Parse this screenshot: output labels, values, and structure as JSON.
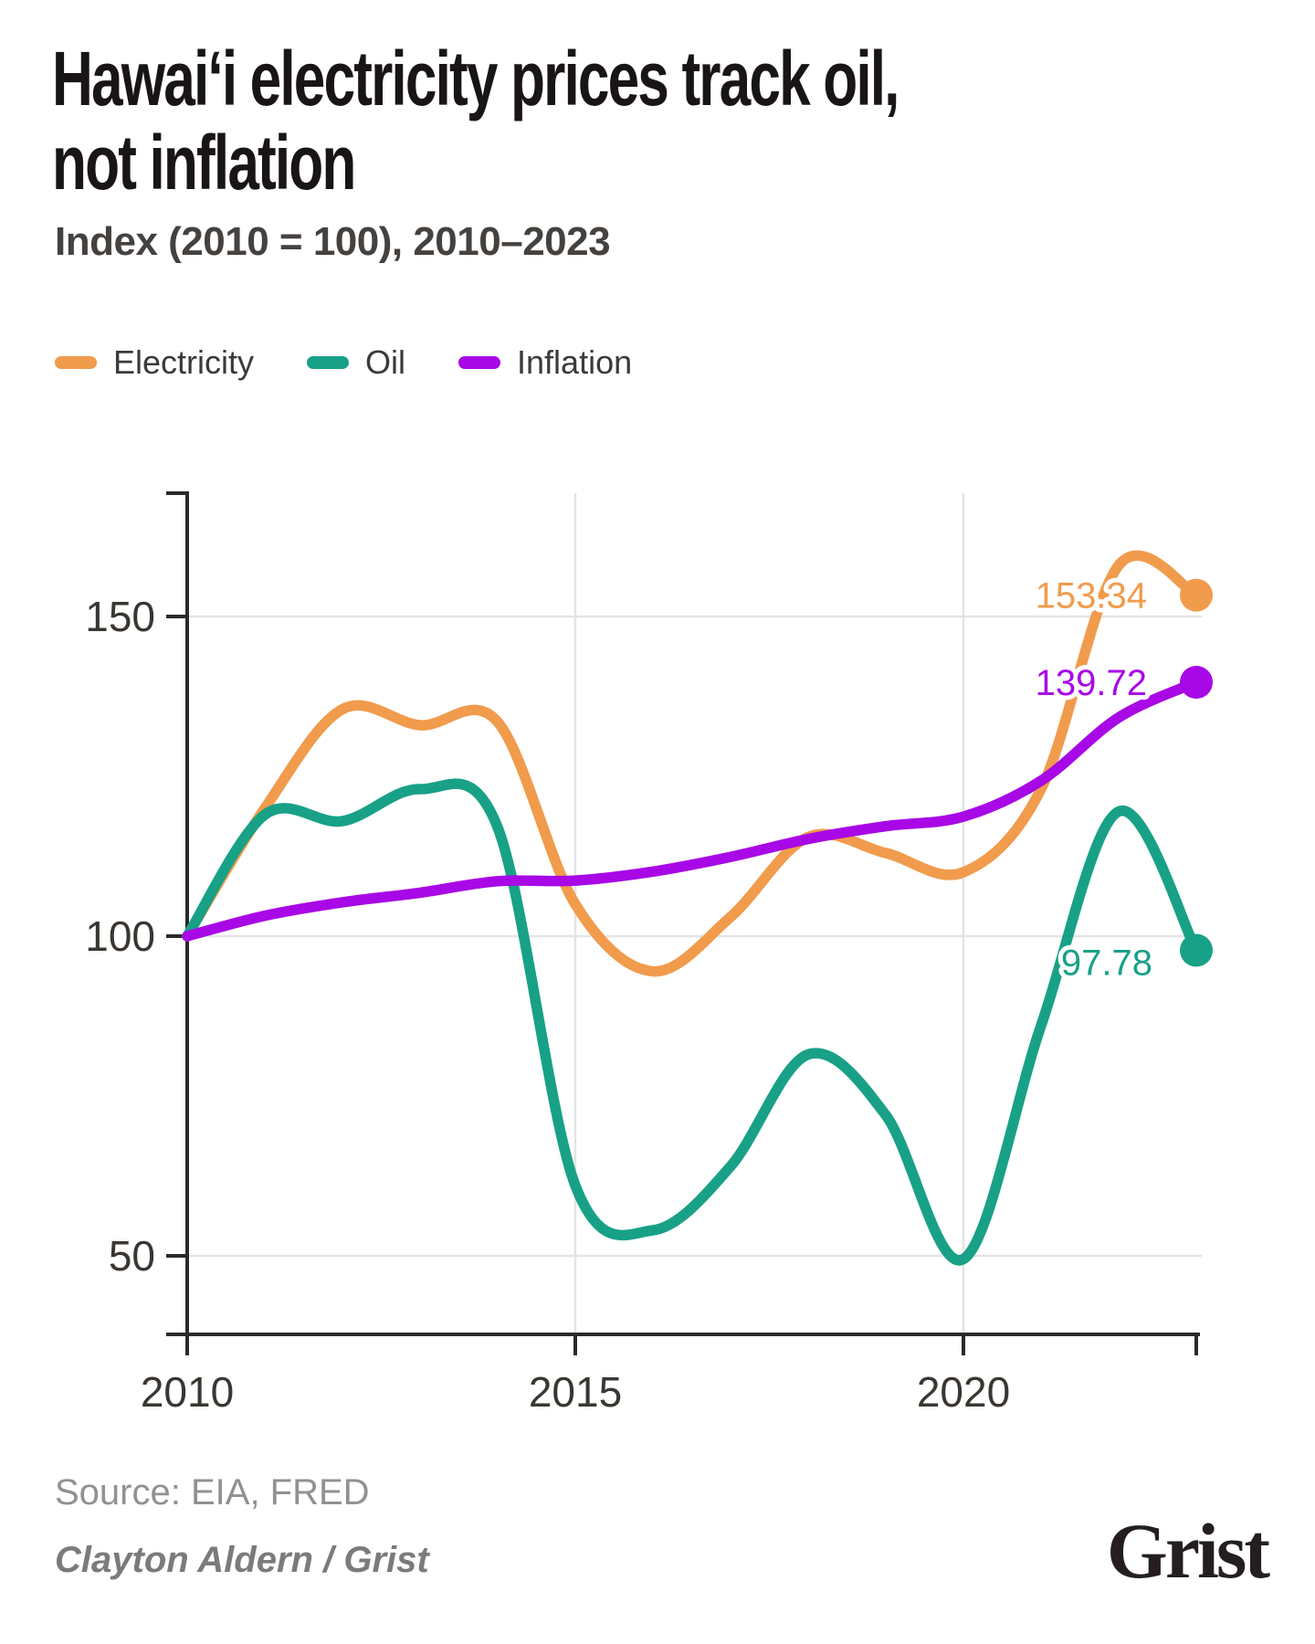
{
  "header": {
    "title_lines": [
      "Hawaiʻi electricity prices track oil,",
      "not inflation"
    ],
    "title": "Hawaiʻi electricity prices track oil, not inflation",
    "subtitle": "Index (2010 = 100), 2010–2023"
  },
  "legend": [
    {
      "label": "Electricity",
      "color": "#F19B4C"
    },
    {
      "label": "Oil",
      "color": "#18A187"
    },
    {
      "label": "Inflation",
      "color": "#A807E6"
    }
  ],
  "chart_data": {
    "type": "line",
    "title": "Hawaiʻi electricity prices track oil, not inflation",
    "subtitle": "Index (2010 = 100), 2010–2023",
    "xlabel": "",
    "ylabel": "",
    "x": [
      2010,
      2011,
      2012,
      2013,
      2014,
      2015,
      2016,
      2017,
      2018,
      2019,
      2020,
      2021,
      2022,
      2023
    ],
    "series": [
      {
        "name": "Electricity",
        "color": "#F19B4C",
        "end_label": "153.34",
        "values": [
          100,
          120,
          135.5,
          133,
          133.5,
          105,
          94.5,
          103,
          115.5,
          113,
          110,
          123,
          158,
          153.34
        ]
      },
      {
        "name": "Oil",
        "color": "#18A187",
        "end_label": "97.78",
        "values": [
          100,
          119,
          118,
          123,
          117,
          61,
          54,
          64,
          81.5,
          72,
          49.5,
          86,
          119.5,
          97.78
        ]
      },
      {
        "name": "Inflation",
        "color": "#A807E6",
        "end_label": "139.72",
        "values": [
          100,
          103.2,
          105.3,
          106.8,
          108.6,
          108.7,
          110.1,
          112.4,
          115.2,
          117.2,
          118.7,
          124.3,
          134.2,
          139.72
        ]
      }
    ],
    "x_ticks": [
      2010,
      2015,
      2020
    ],
    "y_ticks": [
      50,
      100,
      150
    ],
    "xlim": [
      2010,
      2023.2
    ],
    "ylim": [
      37,
      169
    ],
    "grid": true,
    "legend_position": "top"
  },
  "footer": {
    "source": "Source: EIA, FRED",
    "credit": "Clayton Aldern / Grist",
    "logo": "Grist"
  }
}
